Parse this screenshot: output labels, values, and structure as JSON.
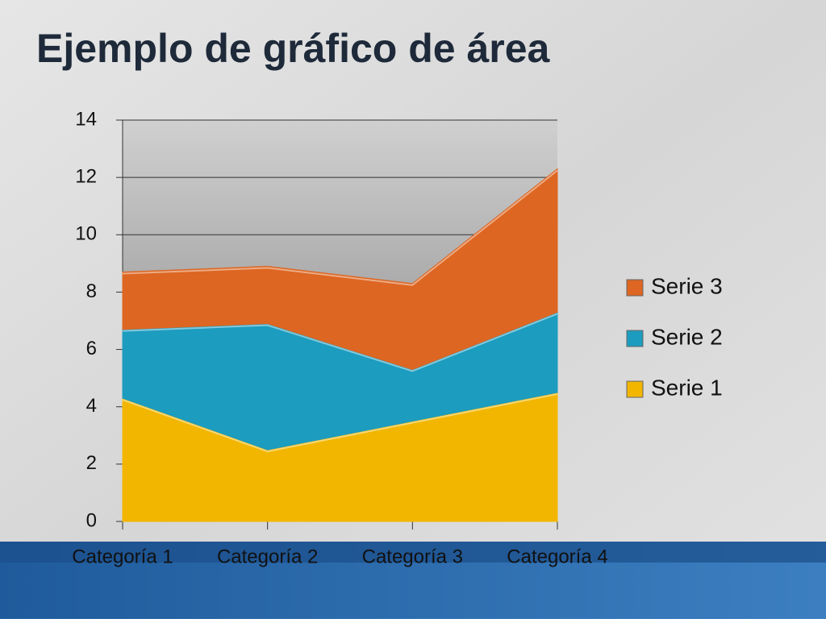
{
  "chart_data": {
    "type": "area",
    "stacked": true,
    "title": "Ejemplo de gráfico de área",
    "categories": [
      "Categoría 1",
      "Categoría 2",
      "Categoría 3",
      "Categoría 4"
    ],
    "series": [
      {
        "name": "Serie 1",
        "color": "#f2b600",
        "values": [
          4.3,
          2.5,
          3.5,
          4.5
        ]
      },
      {
        "name": "Serie 2",
        "color": "#1c9cbf",
        "values": [
          2.4,
          4.4,
          1.8,
          2.8
        ]
      },
      {
        "name": "Serie 3",
        "color": "#dd6622",
        "values": [
          2,
          2,
          3,
          5
        ]
      }
    ],
    "ylim": [
      0,
      14
    ],
    "yticks": [
      0,
      2,
      4,
      6,
      8,
      10,
      12,
      14
    ],
    "grid": true,
    "legend": "right"
  }
}
